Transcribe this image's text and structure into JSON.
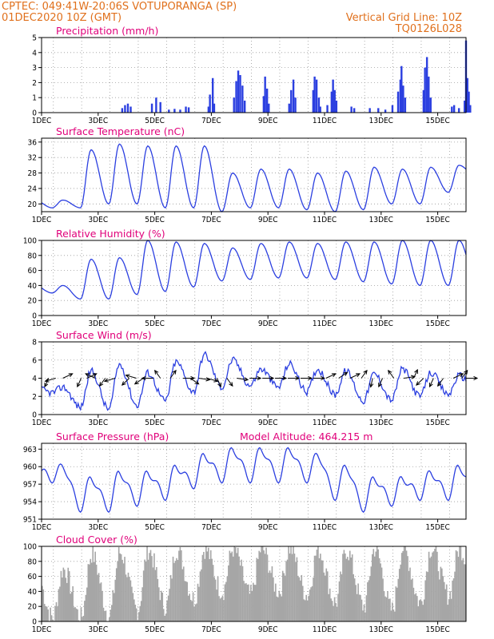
{
  "header": {
    "line1_left": "CPTEC:   049:41W-20:06S   VOTUPORANGA (SP)",
    "line2_left": "01DEC2020 10Z (GMT)",
    "line1_right": "Vertical Grid Line: 10Z",
    "line2_right": "TQ0126L028"
  },
  "colors": {
    "line": "#2b3fe0",
    "bar": "#2b3fe0",
    "cloud": "#a6a6a6",
    "title": "#e0007a",
    "header": "#e0701c"
  },
  "x_ticks": [
    "1DEC",
    "3DEC",
    "5DEC",
    "7DEC",
    "9DEC",
    "11DEC",
    "13DEC",
    "15DEC"
  ],
  "chart_data": [
    {
      "id": "precip",
      "type": "bar",
      "title": "Precipitation (mm/h)",
      "xlabel": "",
      "ylabel": "",
      "ylim": [
        0,
        5
      ],
      "yticks": [
        0,
        1,
        2,
        3,
        4,
        5
      ],
      "x_unit": "days since 01DEC2020 00Z",
      "xlim": [
        0,
        15
      ],
      "events": [
        [
          2.85,
          0.3
        ],
        [
          2.95,
          0.5
        ],
        [
          3.05,
          0.6
        ],
        [
          3.15,
          0.4
        ],
        [
          3.9,
          0.6
        ],
        [
          4.05,
          1.0
        ],
        [
          4.2,
          0.7
        ],
        [
          4.5,
          0.2
        ],
        [
          4.7,
          0.25
        ],
        [
          4.9,
          0.2
        ],
        [
          5.1,
          0.4
        ],
        [
          5.2,
          0.35
        ],
        [
          5.9,
          0.4
        ],
        [
          5.95,
          1.2
        ],
        [
          6.05,
          2.3
        ],
        [
          6.1,
          0.6
        ],
        [
          6.8,
          1.0
        ],
        [
          6.88,
          2.1
        ],
        [
          6.95,
          2.8
        ],
        [
          7.02,
          2.5
        ],
        [
          7.1,
          1.8
        ],
        [
          7.18,
          0.8
        ],
        [
          7.85,
          1.1
        ],
        [
          7.9,
          2.4
        ],
        [
          7.97,
          1.6
        ],
        [
          8.03,
          0.6
        ],
        [
          8.75,
          0.6
        ],
        [
          8.82,
          1.5
        ],
        [
          8.9,
          2.2
        ],
        [
          8.97,
          1.0
        ],
        [
          9.6,
          1.5
        ],
        [
          9.65,
          2.4
        ],
        [
          9.72,
          2.2
        ],
        [
          9.8,
          1.0
        ],
        [
          9.85,
          0.4
        ],
        [
          10.1,
          0.5
        ],
        [
          10.25,
          1.4
        ],
        [
          10.3,
          2.2
        ],
        [
          10.36,
          1.5
        ],
        [
          10.42,
          0.8
        ],
        [
          10.95,
          0.4
        ],
        [
          11.05,
          0.3
        ],
        [
          11.6,
          0.3
        ],
        [
          11.9,
          0.3
        ],
        [
          12.15,
          0.2
        ],
        [
          12.4,
          0.5
        ],
        [
          12.6,
          1.4
        ],
        [
          12.68,
          2.2
        ],
        [
          12.72,
          3.1
        ],
        [
          12.78,
          1.8
        ],
        [
          12.85,
          1.0
        ],
        [
          13.5,
          1.5
        ],
        [
          13.55,
          3.0
        ],
        [
          13.62,
          3.7
        ],
        [
          13.68,
          2.4
        ],
        [
          13.75,
          1.0
        ],
        [
          14.5,
          0.4
        ],
        [
          14.58,
          0.5
        ],
        [
          14.75,
          0.3
        ],
        [
          14.95,
          0.8
        ],
        [
          15.0,
          4.8
        ],
        [
          15.05,
          2.3
        ],
        [
          15.1,
          1.4
        ],
        [
          15.15,
          0.5
        ]
      ]
    },
    {
      "id": "temp",
      "type": "line",
      "title": "Surface Temperature (nC)",
      "xlabel": "",
      "ylabel": "",
      "ylim": [
        18,
        37
      ],
      "yticks": [
        20,
        24,
        28,
        32,
        36
      ],
      "x_unit": "days since 01DEC2020 00Z",
      "xlim": [
        0,
        15
      ],
      "daily_extremes": [
        [
          21,
          19
        ],
        [
          34,
          19
        ],
        [
          35.5,
          20
        ],
        [
          35,
          20
        ],
        [
          35,
          19
        ],
        [
          35,
          19
        ],
        [
          28,
          18
        ],
        [
          29,
          19
        ],
        [
          29,
          19
        ],
        [
          28,
          18.5
        ],
        [
          28.5,
          18
        ],
        [
          29.5,
          18.5
        ],
        [
          29,
          20
        ],
        [
          29.5,
          20
        ],
        [
          30,
          23
        ],
        [
          29.5,
          27
        ]
      ]
    },
    {
      "id": "humid",
      "type": "line",
      "title": "Relative Humidity (%)",
      "xlabel": "",
      "ylabel": "",
      "ylim": [
        0,
        100
      ],
      "yticks": [
        0,
        20,
        40,
        60,
        80,
        100
      ],
      "x_unit": "days since 01DEC2020 00Z",
      "xlim": [
        0,
        15
      ],
      "daily_extremes": [
        [
          40,
          30
        ],
        [
          75,
          22
        ],
        [
          77,
          22
        ],
        [
          100,
          28
        ],
        [
          98,
          32
        ],
        [
          96,
          38
        ],
        [
          90,
          46
        ],
        [
          96,
          48
        ],
        [
          98,
          50
        ],
        [
          96,
          50
        ],
        [
          98,
          48
        ],
        [
          98,
          45
        ],
        [
          100,
          42
        ],
        [
          100,
          40
        ],
        [
          100,
          40
        ],
        [
          98,
          45
        ]
      ]
    },
    {
      "id": "wind",
      "type": "line",
      "title": "Surface Wind (m/s)",
      "xlabel": "",
      "ylabel": "",
      "ylim": [
        0,
        8
      ],
      "yticks": [
        0,
        2,
        4,
        6,
        8
      ],
      "x_unit": "days since 01DEC2020 00Z",
      "xlim": [
        0,
        15
      ],
      "daily_extremes": [
        [
          3.0,
          2.4
        ],
        [
          4.8,
          0.8
        ],
        [
          5.5,
          0.6
        ],
        [
          4.6,
          1.0
        ],
        [
          5.8,
          1.5
        ],
        [
          6.6,
          2.5
        ],
        [
          6.0,
          3.0
        ],
        [
          5.0,
          3.2
        ],
        [
          5.6,
          3.0
        ],
        [
          5.0,
          2.5
        ],
        [
          4.8,
          2.2
        ],
        [
          4.5,
          1.5
        ],
        [
          5.0,
          1.6
        ],
        [
          4.6,
          2.0
        ],
        [
          4.3,
          2.2
        ],
        [
          4.0,
          2.6
        ]
      ],
      "arrows": [
        [
          0.25,
          200
        ],
        [
          0.5,
          250
        ],
        [
          0.75,
          60
        ],
        [
          1.4,
          200
        ],
        [
          1.6,
          60
        ],
        [
          1.9,
          300
        ],
        [
          2.25,
          210
        ],
        [
          2.6,
          250
        ],
        [
          3.1,
          220
        ],
        [
          3.35,
          290
        ],
        [
          3.6,
          230
        ],
        [
          3.95,
          270
        ],
        [
          4.2,
          330
        ],
        [
          4.55,
          30
        ],
        [
          5.0,
          90
        ],
        [
          5.25,
          130
        ],
        [
          5.55,
          100
        ],
        [
          5.85,
          110
        ],
        [
          6.2,
          160
        ],
        [
          6.55,
          150
        ],
        [
          6.9,
          100
        ],
        [
          7.35,
          90
        ],
        [
          7.8,
          90
        ],
        [
          8.25,
          90
        ],
        [
          8.7,
          90
        ],
        [
          9.15,
          90
        ],
        [
          9.6,
          90
        ],
        [
          10.05,
          60
        ],
        [
          10.5,
          50
        ],
        [
          10.9,
          60
        ],
        [
          11.3,
          30
        ],
        [
          11.7,
          190
        ],
        [
          12.05,
          200
        ],
        [
          12.45,
          330
        ],
        [
          12.8,
          80
        ],
        [
          13.15,
          20
        ],
        [
          13.5,
          220
        ],
        [
          13.85,
          200
        ],
        [
          14.2,
          210
        ],
        [
          14.55,
          60
        ],
        [
          14.85,
          30
        ],
        [
          15.0,
          90
        ]
      ]
    },
    {
      "id": "press",
      "type": "line",
      "title": "Surface Pressure (hPa)",
      "annotation": "Model Altitude: 464.215 m",
      "xlabel": "",
      "ylabel": "",
      "ylim": [
        951,
        964
      ],
      "yticks": [
        951,
        954,
        957,
        960,
        963
      ],
      "x_unit": "days since 01DEC2020 00Z",
      "xlim": [
        0,
        15
      ],
      "daily_extremes": [
        [
          960,
          958
        ],
        [
          958,
          953
        ],
        [
          959,
          953
        ],
        [
          959,
          954
        ],
        [
          960,
          955
        ],
        [
          962,
          957
        ],
        [
          963,
          958
        ],
        [
          963,
          958
        ],
        [
          963,
          958
        ],
        [
          962,
          958
        ],
        [
          960,
          955
        ],
        [
          958,
          953
        ],
        [
          958,
          954
        ],
        [
          959,
          955
        ],
        [
          960,
          955
        ],
        [
          958,
          955
        ]
      ]
    },
    {
      "id": "cloud",
      "type": "bar",
      "title": "Cloud Cover (%)",
      "xlabel": "",
      "ylabel": "",
      "ylim": [
        0,
        100
      ],
      "yticks": [
        0,
        20,
        40,
        60,
        80,
        100
      ],
      "x_unit": "days since 01DEC2020 00Z",
      "xlim": [
        0,
        15
      ],
      "daily_extremes": [
        [
          70,
          5
        ],
        [
          90,
          5
        ],
        [
          92,
          8
        ],
        [
          96,
          15
        ],
        [
          96,
          20
        ],
        [
          97,
          30
        ],
        [
          97,
          40
        ],
        [
          97,
          35
        ],
        [
          98,
          40
        ],
        [
          96,
          35
        ],
        [
          95,
          25
        ],
        [
          97,
          20
        ],
        [
          98,
          15
        ],
        [
          98,
          25
        ],
        [
          98,
          35
        ],
        [
          97,
          30
        ]
      ]
    }
  ]
}
